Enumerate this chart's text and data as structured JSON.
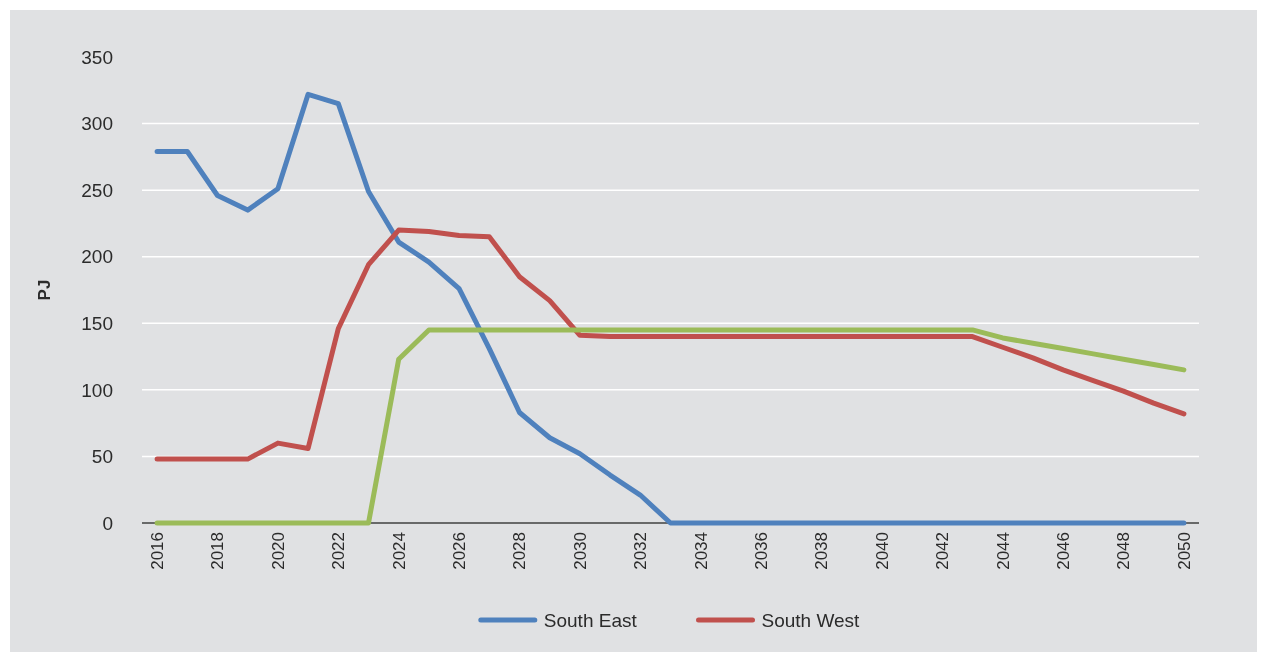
{
  "chart_data": {
    "type": "line",
    "ylabel": "PJ",
    "x": [
      2016,
      2017,
      2018,
      2019,
      2020,
      2021,
      2022,
      2023,
      2024,
      2025,
      2026,
      2027,
      2028,
      2029,
      2030,
      2031,
      2032,
      2033,
      2034,
      2035,
      2036,
      2037,
      2038,
      2039,
      2040,
      2041,
      2042,
      2043,
      2044,
      2045,
      2046,
      2047,
      2048,
      2049,
      2050
    ],
    "xlim": [
      2015.5,
      2050.5
    ],
    "xticks": [
      2016,
      2018,
      2020,
      2022,
      2024,
      2026,
      2028,
      2030,
      2032,
      2034,
      2036,
      2038,
      2040,
      2042,
      2044,
      2046,
      2048,
      2050
    ],
    "ylim": [
      0,
      350
    ],
    "yticks": [
      0,
      50,
      100,
      150,
      200,
      250,
      300,
      350
    ],
    "grid": "y",
    "legend": "bottom",
    "series": [
      {
        "name": "South East",
        "color": "#4f81bd",
        "values": [
          279,
          279,
          246,
          235,
          251,
          322,
          315,
          249,
          211,
          196,
          176,
          131,
          83,
          64,
          52,
          36,
          21,
          0,
          0,
          0,
          0,
          0,
          0,
          0,
          0,
          0,
          0,
          0,
          0,
          0,
          0,
          0,
          0,
          0,
          0
        ]
      },
      {
        "name": "South West",
        "color": "#c0504d",
        "values": [
          48,
          48,
          48,
          48,
          60,
          56,
          146,
          194,
          220,
          219,
          216,
          215,
          185,
          167,
          141,
          140,
          140,
          140,
          140,
          140,
          140,
          140,
          140,
          140,
          140,
          140,
          140,
          140,
          132,
          124,
          115,
          107,
          99,
          90,
          82
        ]
      },
      {
        "color": "#9bbb59",
        "values": [
          0,
          0,
          0,
          0,
          0,
          0,
          0,
          0,
          123,
          145,
          145,
          145,
          145,
          145,
          145,
          145,
          145,
          145,
          145,
          145,
          145,
          145,
          145,
          145,
          145,
          145,
          145,
          145,
          139,
          135,
          131,
          127,
          123,
          119,
          115
        ]
      }
    ]
  }
}
